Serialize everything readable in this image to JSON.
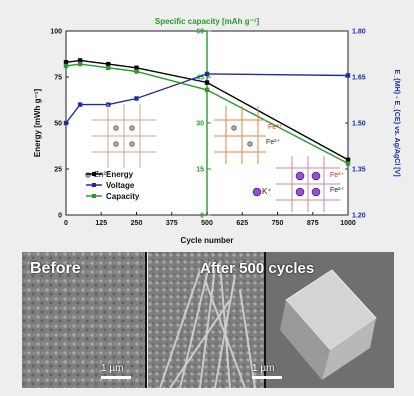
{
  "chart_data": {
    "type": "line",
    "top_axis_label": "Specific capacity [mAh g⁻¹]",
    "top_ticks": [
      "0",
      "15",
      "30",
      "45",
      "60"
    ],
    "xlabel": "Cycle number",
    "x_ticks": [
      "0",
      "125",
      "250",
      "375",
      "500",
      "625",
      "750",
      "875",
      "1000"
    ],
    "xlim": [
      0,
      1000
    ],
    "ylabel_left": "Energy [mWh g⁻¹]",
    "ylim_left": [
      0,
      100
    ],
    "y_ticks_left": [
      "0",
      "25",
      "50",
      "75",
      "100"
    ],
    "ylabel_right": "E_{MH} - E_{CE} vs. Ag/AgCl [V]",
    "ylim_right": [
      1.2,
      1.8
    ],
    "y_ticks_right": [
      "1.20",
      "1.35",
      "1.50",
      "1.65",
      "1.80"
    ],
    "series": [
      {
        "name": "Energy",
        "color": "#000000",
        "x": [
          0,
          50,
          150,
          250,
          500,
          1000
        ],
        "y": [
          83,
          84,
          82,
          80,
          72,
          30
        ]
      },
      {
        "name": "Voltage",
        "color": "#1c2fa0",
        "x": [
          0,
          50,
          150,
          250,
          500,
          1000
        ],
        "y": [
          1.5,
          1.56,
          1.56,
          1.58,
          1.66,
          1.655
        ]
      },
      {
        "name": "Capacity",
        "color": "#2a9a2a",
        "x": [
          0,
          50,
          150,
          250,
          500,
          1000
        ],
        "y": [
          81,
          82,
          80,
          78,
          68,
          28
        ]
      }
    ],
    "ion_labels": {
      "zn": "Zn²⁺",
      "fe3": "Fe³⁺",
      "fe2": "Fe²⁺",
      "k": "K⁺"
    }
  },
  "micrographs": [
    {
      "label": "Before",
      "scale": "1 µm"
    },
    {
      "label": "After 500 cycles",
      "scale": "1 µm"
    }
  ]
}
